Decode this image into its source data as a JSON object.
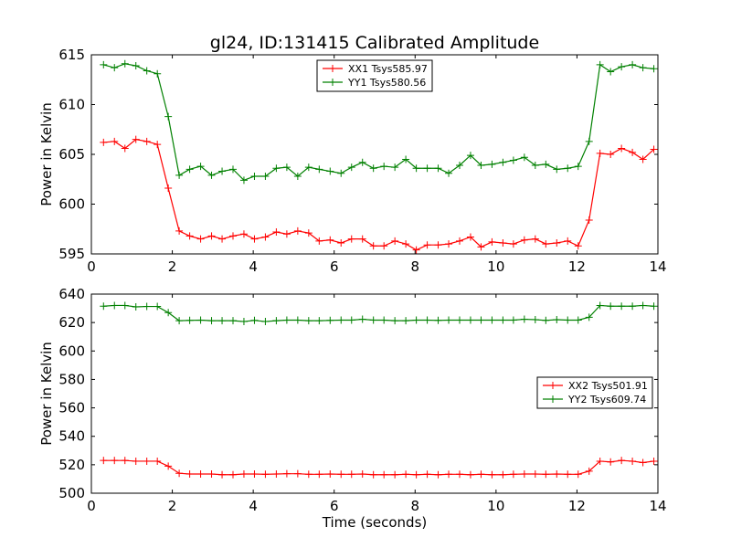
{
  "figure": {
    "title": "gl24, ID:131415 Calibrated Amplitude"
  },
  "chart_data": [
    {
      "type": "line",
      "title": "gl24, ID:131415 Calibrated Amplitude",
      "xlabel": "",
      "ylabel": "Power in Kelvin",
      "xlim": [
        0,
        14
      ],
      "ylim": [
        595,
        615
      ],
      "xticks": [
        0,
        2,
        4,
        6,
        8,
        10,
        12,
        14
      ],
      "yticks": [
        595,
        600,
        605,
        610,
        615
      ],
      "grid": false,
      "legend_position": "top-center",
      "x": [
        0.3,
        0.57,
        0.83,
        1.1,
        1.37,
        1.63,
        1.9,
        2.17,
        2.43,
        2.7,
        2.97,
        3.23,
        3.5,
        3.77,
        4.03,
        4.3,
        4.57,
        4.83,
        5.1,
        5.37,
        5.63,
        5.9,
        6.17,
        6.43,
        6.7,
        6.97,
        7.23,
        7.5,
        7.77,
        8.03,
        8.3,
        8.57,
        8.83,
        9.1,
        9.37,
        9.63,
        9.9,
        10.17,
        10.43,
        10.7,
        10.97,
        11.23,
        11.5,
        11.77,
        12.03,
        12.3,
        12.57,
        12.83,
        13.1,
        13.37,
        13.63,
        13.9
      ],
      "series": [
        {
          "name": "XX1 Tsys585.97",
          "color": "#ff0000",
          "values": [
            606.2,
            606.3,
            605.6,
            606.5,
            606.3,
            606.0,
            601.6,
            597.3,
            596.8,
            596.5,
            596.8,
            596.5,
            596.8,
            597.0,
            596.5,
            596.7,
            597.2,
            597.0,
            597.3,
            597.1,
            596.3,
            596.4,
            596.1,
            596.5,
            596.5,
            595.8,
            595.8,
            596.3,
            596.0,
            595.4,
            595.9,
            595.9,
            596.0,
            596.3,
            596.7,
            595.7,
            596.2,
            596.1,
            596.0,
            596.4,
            596.5,
            596.0,
            596.1,
            596.3,
            595.8,
            598.4,
            605.1,
            605.0,
            605.6,
            605.2,
            604.5,
            605.5
          ]
        },
        {
          "name": "YY1 Tsys580.56",
          "color": "#008000",
          "values": [
            614.0,
            613.7,
            614.1,
            613.9,
            613.4,
            613.1,
            608.8,
            602.9,
            603.5,
            603.8,
            602.9,
            603.3,
            603.5,
            602.4,
            602.8,
            602.8,
            603.6,
            603.7,
            602.8,
            603.7,
            603.5,
            603.3,
            603.1,
            603.7,
            604.2,
            603.6,
            603.8,
            603.7,
            604.5,
            603.6,
            603.6,
            603.6,
            603.1,
            603.9,
            604.9,
            603.9,
            604.0,
            604.2,
            604.4,
            604.7,
            603.9,
            604.0,
            603.5,
            603.6,
            603.8,
            606.3,
            614.0,
            613.3,
            613.8,
            614.0,
            613.7,
            613.6
          ]
        }
      ]
    },
    {
      "type": "line",
      "title": "",
      "xlabel": "Time (seconds)",
      "ylabel": "Power in Kelvin",
      "xlim": [
        0,
        14
      ],
      "ylim": [
        500,
        640
      ],
      "xticks": [
        0,
        2,
        4,
        6,
        8,
        10,
        12,
        14
      ],
      "yticks": [
        500,
        520,
        540,
        560,
        580,
        600,
        620,
        640
      ],
      "grid": false,
      "legend_position": "center-right",
      "x": [
        0.3,
        0.57,
        0.83,
        1.1,
        1.37,
        1.63,
        1.9,
        2.17,
        2.43,
        2.7,
        2.97,
        3.23,
        3.5,
        3.77,
        4.03,
        4.3,
        4.57,
        4.83,
        5.1,
        5.37,
        5.63,
        5.9,
        6.17,
        6.43,
        6.7,
        6.97,
        7.23,
        7.5,
        7.77,
        8.03,
        8.3,
        8.57,
        8.83,
        9.1,
        9.37,
        9.63,
        9.9,
        10.17,
        10.43,
        10.7,
        10.97,
        11.23,
        11.5,
        11.77,
        12.03,
        12.3,
        12.57,
        12.83,
        13.1,
        13.37,
        13.63,
        13.9
      ],
      "series": [
        {
          "name": "XX2 Tsys501.91",
          "color": "#ff0000",
          "values": [
            523,
            523,
            523,
            522.5,
            522.5,
            522.5,
            519,
            514,
            513.5,
            513.5,
            513.5,
            513,
            513,
            513.5,
            513.5,
            513.3,
            513.5,
            513.7,
            513.7,
            513.3,
            513.3,
            513.5,
            513.3,
            513.3,
            513.5,
            513,
            513,
            513,
            513.3,
            513,
            513.3,
            513,
            513.3,
            513.3,
            513,
            513.3,
            513,
            513,
            513.3,
            513.5,
            513.5,
            513.3,
            513.5,
            513.3,
            513.3,
            515.5,
            522.5,
            522,
            523,
            522.5,
            521.5,
            522.5
          ]
        },
        {
          "name": "YY2 Tsys609.74",
          "color": "#008000",
          "values": [
            631.5,
            632,
            632,
            631,
            631.3,
            631.3,
            627,
            621.3,
            621.5,
            621.7,
            621.3,
            621.3,
            621.3,
            620.7,
            621.5,
            620.7,
            621.3,
            621.7,
            621.7,
            621.3,
            621.3,
            621.5,
            621.7,
            621.7,
            622.3,
            621.7,
            621.7,
            621.3,
            621.3,
            621.7,
            621.7,
            621.5,
            621.7,
            621.7,
            621.7,
            621.7,
            621.7,
            621.7,
            621.7,
            622.3,
            622,
            621.5,
            622,
            621.7,
            621.7,
            623.7,
            632,
            631.5,
            631.5,
            631.5,
            632,
            631.5
          ]
        }
      ]
    }
  ]
}
